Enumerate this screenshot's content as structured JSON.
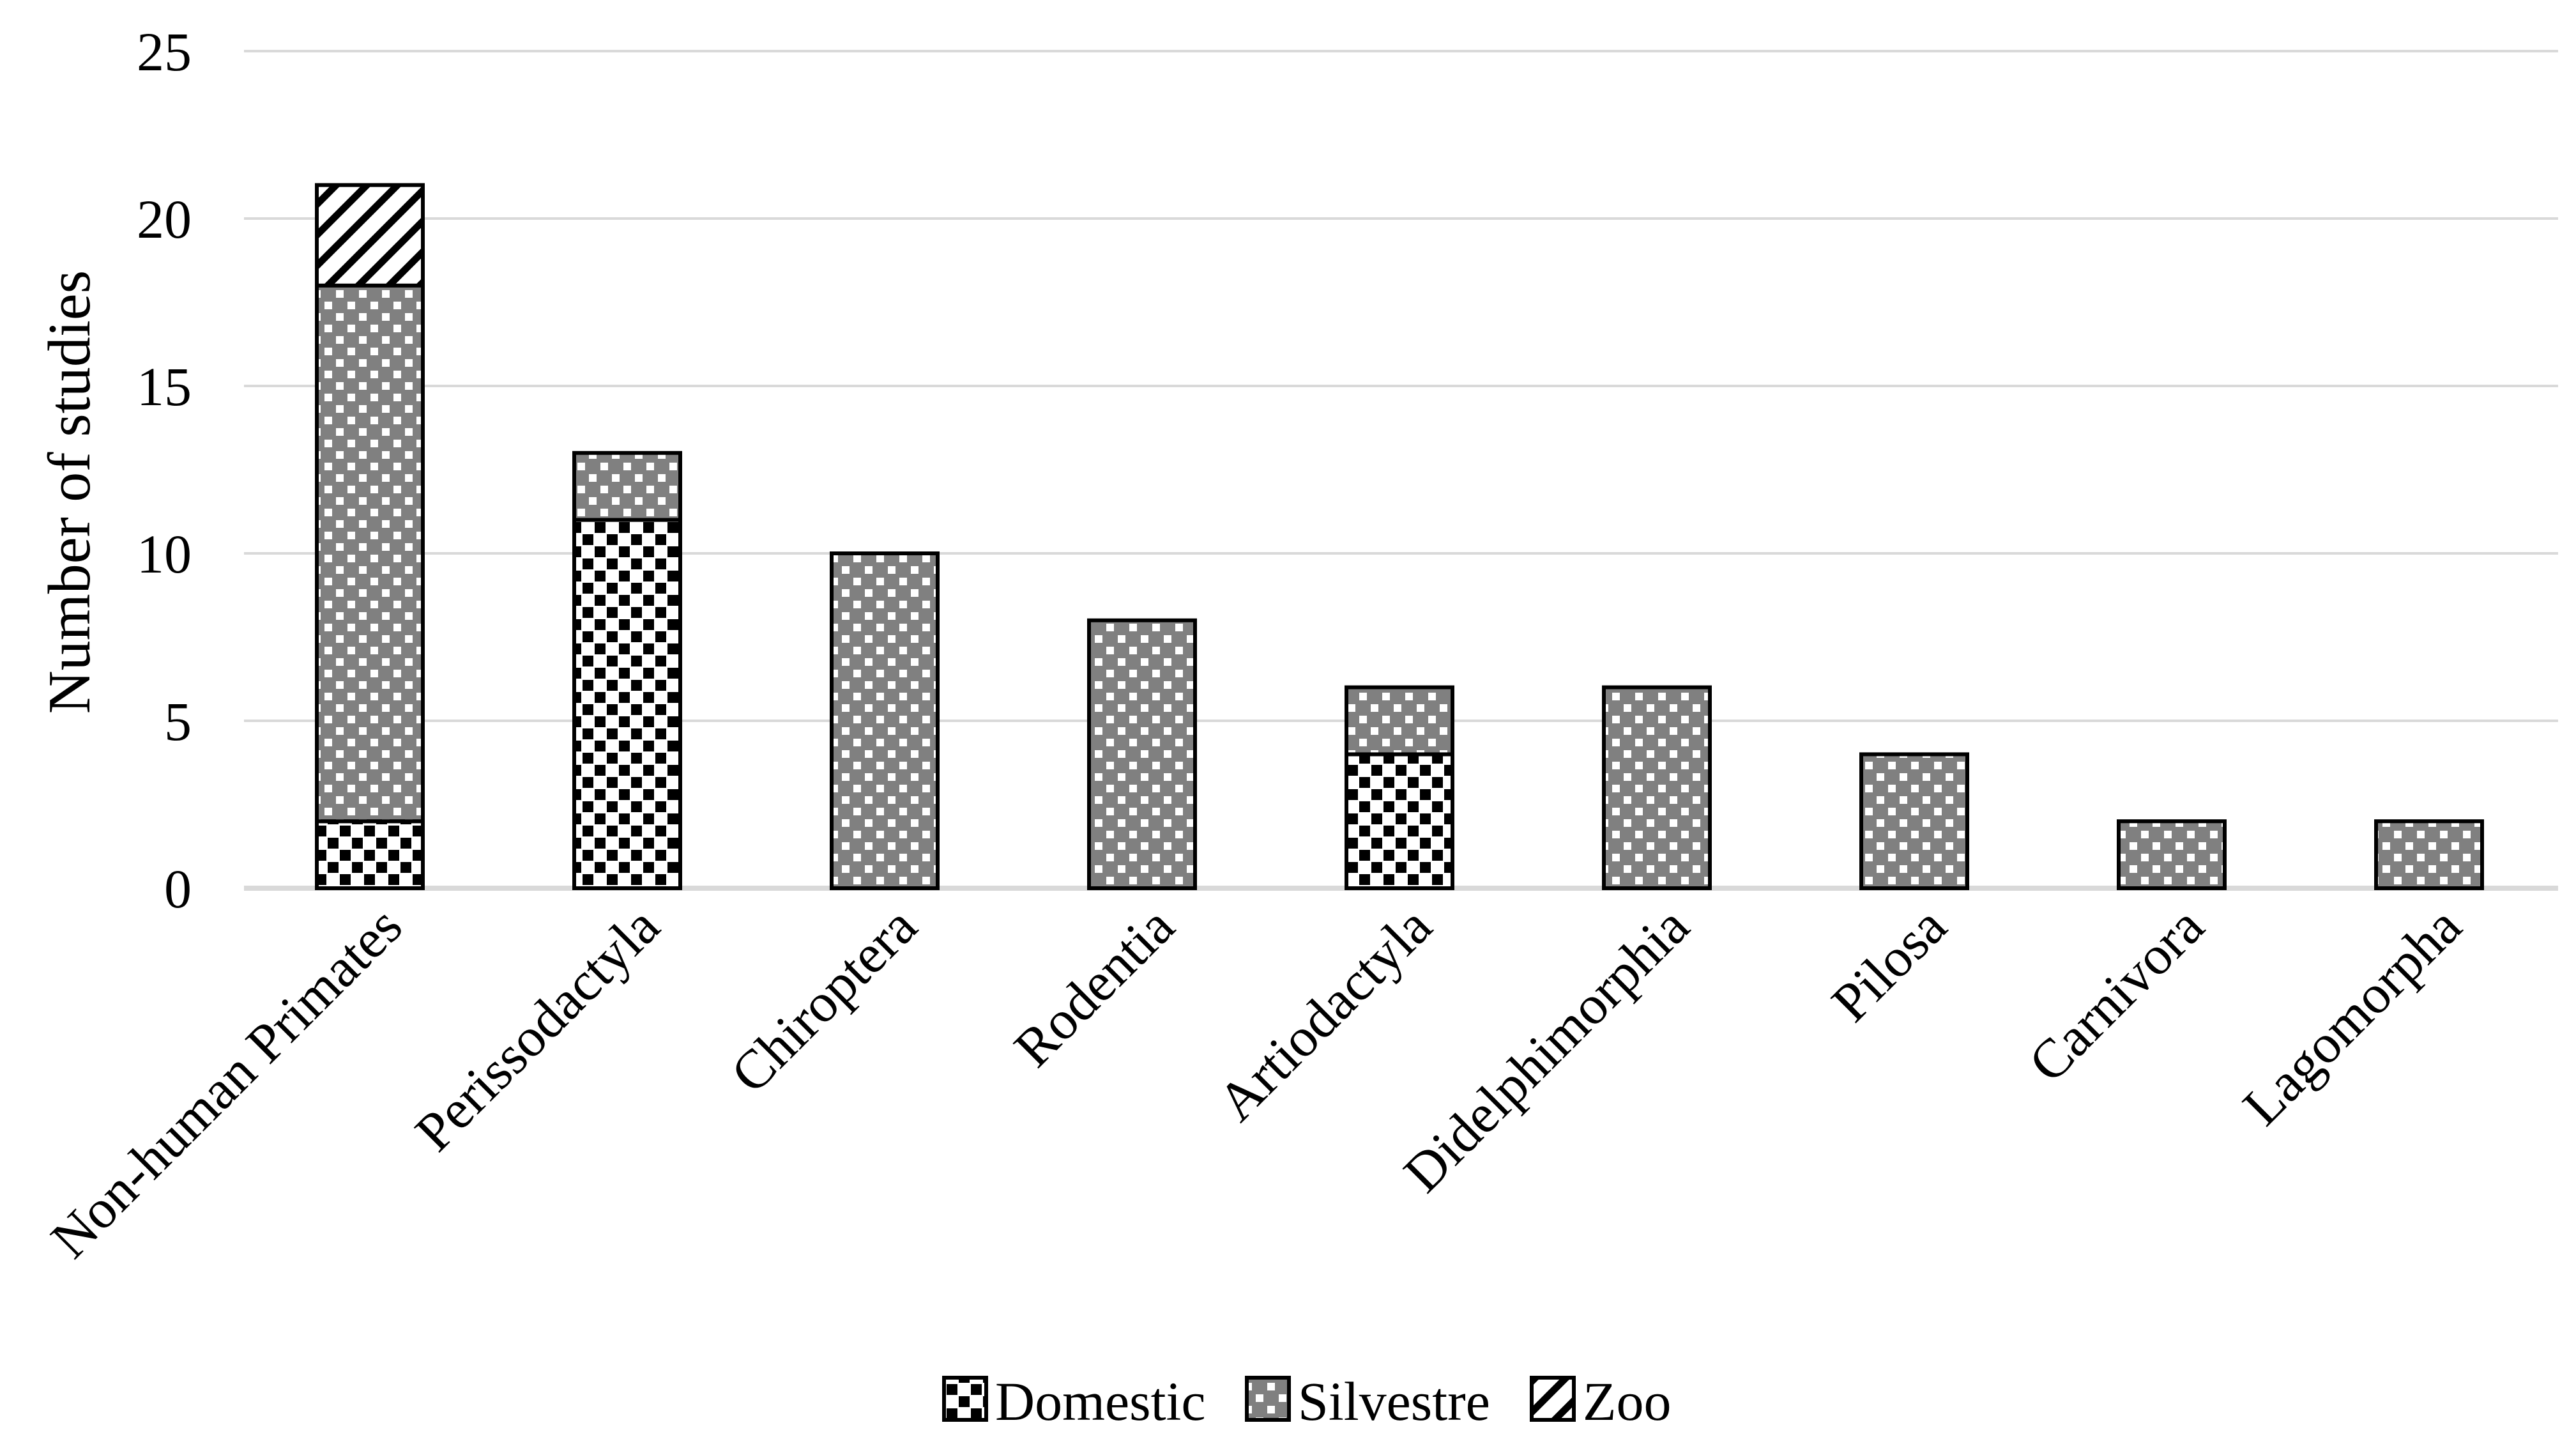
{
  "figure": {
    "background": "#FFFFFF",
    "text_color": "#000000"
  },
  "chart_data": {
    "type": "bar",
    "stacked": true,
    "orientation": "vertical",
    "title": "",
    "xlabel": "",
    "ylabel": "Number of studies",
    "ylim": [
      0,
      25
    ],
    "yticks": [
      0,
      5,
      10,
      15,
      20,
      25
    ],
    "ytick_labels": [
      "0",
      "5",
      "10",
      "15",
      "20",
      "25"
    ],
    "grid": "horizontal",
    "gridline_color": "#D9D9D9",
    "axis_line_color": "#D9D9D9",
    "bar_outline_color": "#000000",
    "categories": [
      "Non-human Primates",
      "Perissodactyla",
      "Chiroptera",
      "Rodentia",
      "Artiodactyla",
      "Didelphimorphia",
      "Pilosa",
      "Carnivora",
      "Lagomorpha"
    ],
    "series": [
      {
        "name": "Domestic",
        "pattern": "black-squares-on-white",
        "fill": "#FFFFFF",
        "pattern_color": "#000000",
        "values": [
          2,
          11,
          0,
          0,
          4,
          0,
          0,
          0,
          0
        ]
      },
      {
        "name": "Silvestre",
        "pattern": "white-dots-on-gray",
        "fill": "#808080",
        "pattern_color": "#FFFFFF",
        "values": [
          16,
          2,
          10,
          8,
          2,
          6,
          4,
          2,
          2
        ]
      },
      {
        "name": "Zoo",
        "pattern": "diagonal-stripes-on-white",
        "fill": "#FFFFFF",
        "pattern_color": "#000000",
        "values": [
          3,
          0,
          0,
          0,
          0,
          0,
          0,
          0,
          0
        ]
      }
    ],
    "totals": [
      21,
      13,
      10,
      8,
      6,
      6,
      4,
      2,
      2
    ],
    "legend_position": "bottom",
    "legend_labels": [
      "Domestic",
      "Silvestre",
      "Zoo"
    ]
  }
}
